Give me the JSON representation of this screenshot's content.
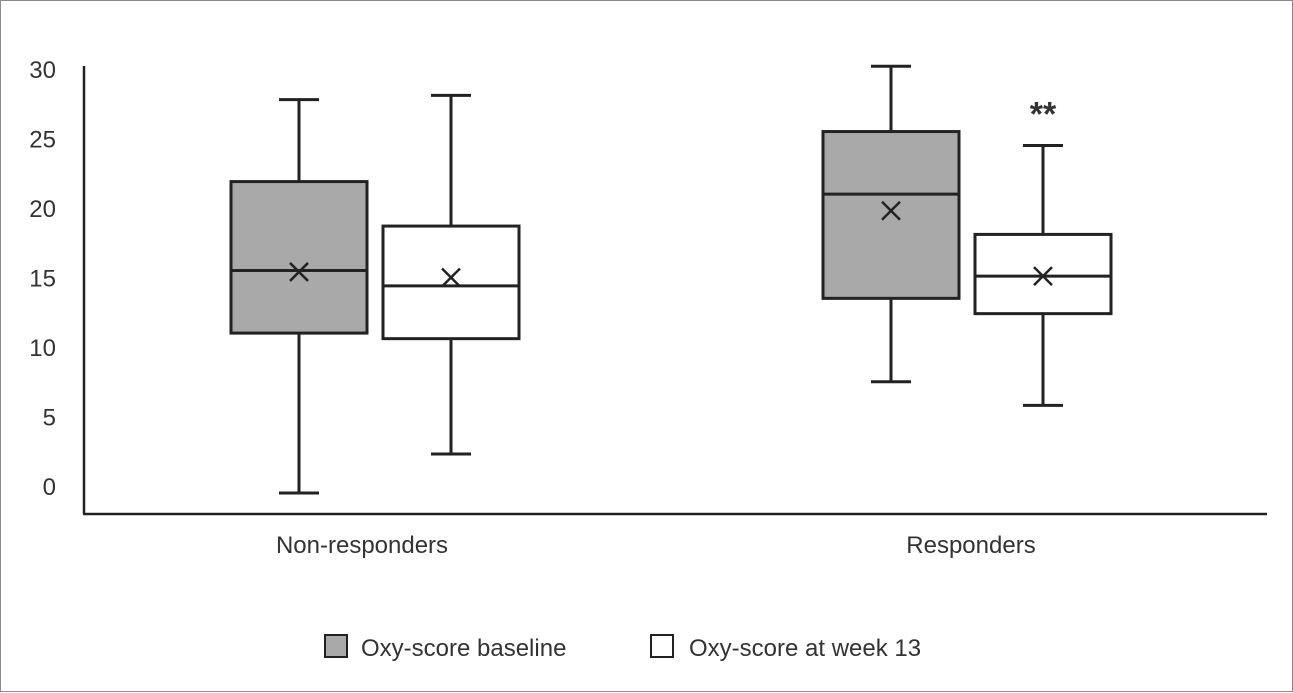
{
  "chart_data": {
    "type": "box",
    "categories": [
      "Non-responders",
      "Responders"
    ],
    "ylim": [
      -1,
      30
    ],
    "yticks": [
      "0",
      "5",
      "10",
      "15",
      "20",
      "25",
      "30"
    ],
    "ytick_values": [
      0,
      5,
      10,
      15,
      20,
      25,
      30
    ],
    "grid": false,
    "legend_position": "bottom",
    "series": [
      {
        "name": "Oxy-score baseline",
        "color": "#a9a9a9",
        "boxes": [
          {
            "min": -0.5,
            "q1": 11.0,
            "median": 15.5,
            "q3": 21.9,
            "max": 27.8,
            "mean": 15.4
          },
          {
            "min": 7.5,
            "q1": 13.5,
            "median": 21.0,
            "q3": 25.5,
            "max": 30.2,
            "mean": 19.8
          }
        ]
      },
      {
        "name": "Oxy-score at week 13",
        "color": "#ffffff",
        "boxes": [
          {
            "min": 2.3,
            "q1": 10.6,
            "median": 14.4,
            "q3": 18.7,
            "max": 28.1,
            "mean": 15.0
          },
          {
            "min": 5.8,
            "q1": 12.4,
            "median": 15.1,
            "q3": 18.1,
            "max": 24.5,
            "mean": 15.1
          }
        ]
      }
    ],
    "annotations": [
      {
        "text": "**",
        "category": "Responders",
        "series": "Oxy-score at week 13"
      }
    ]
  },
  "legend": {
    "items": [
      {
        "label": "Oxy-score baseline",
        "color": "#a9a9a9"
      },
      {
        "label": "Oxy-score at week 13",
        "color": "#ffffff"
      }
    ]
  }
}
